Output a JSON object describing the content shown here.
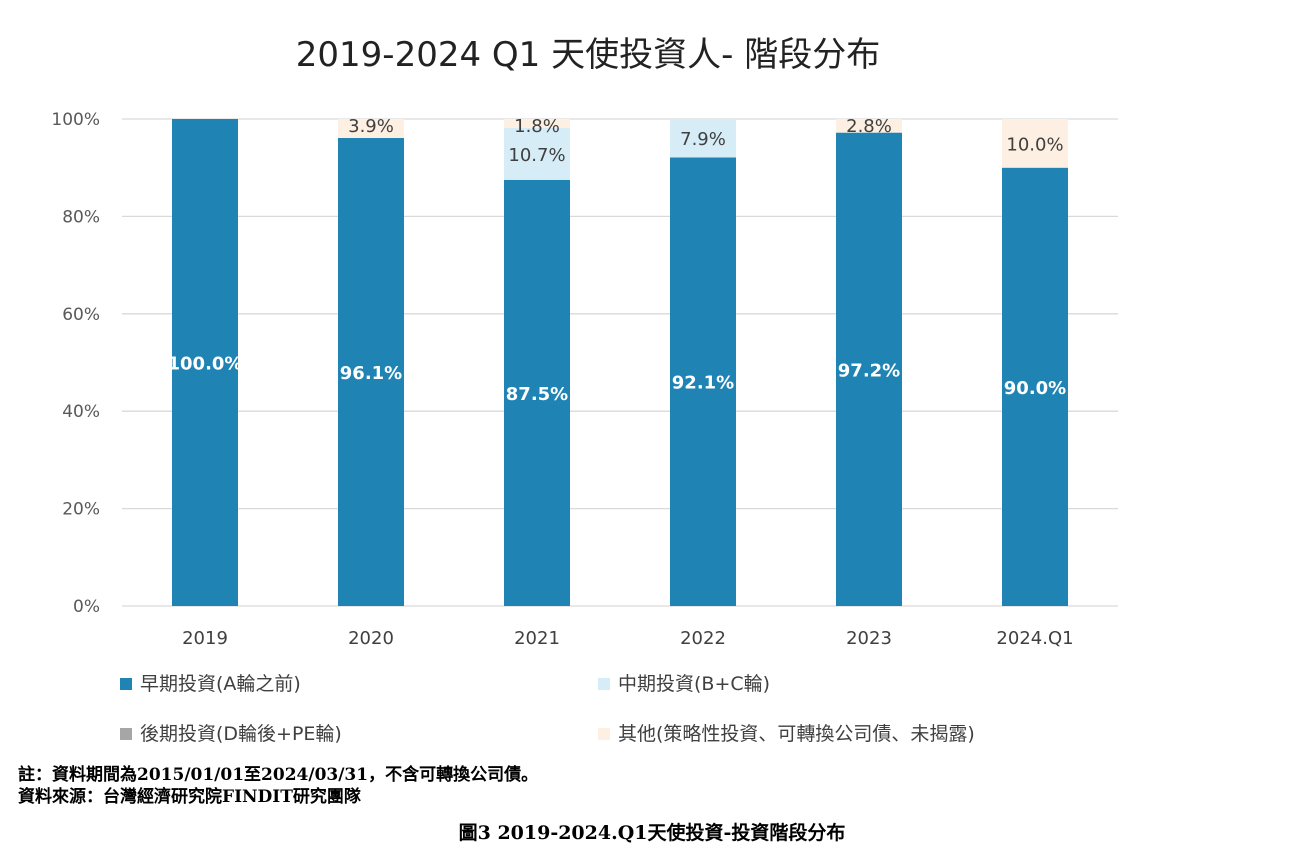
{
  "chart_data": {
    "type": "bar",
    "stacked": true,
    "title": "2019-2024 Q1 天使投資人- 階段分布",
    "categories": [
      "2019",
      "2020",
      "2021",
      "2022",
      "2023",
      "2024.Q1"
    ],
    "ylim": [
      0,
      100
    ],
    "yticks": [
      "0%",
      "20%",
      "40%",
      "60%",
      "80%",
      "100%"
    ],
    "grid": true,
    "legend_position": "bottom",
    "series": [
      {
        "name": "早期投資(A輪之前)",
        "color": "#1f83b4",
        "values": [
          100.0,
          96.1,
          87.5,
          92.1,
          97.2,
          90.0
        ],
        "labels": [
          "100.0%",
          "96.1%",
          "87.5%",
          "92.1%",
          "97.2%",
          "90.0%"
        ]
      },
      {
        "name": "中期投資(B+C輪)",
        "color": "#d6ecf7",
        "values": [
          0,
          0,
          10.7,
          7.9,
          0,
          0
        ],
        "labels": [
          "",
          "",
          "10.7%",
          "7.9%",
          "",
          ""
        ]
      },
      {
        "name": "後期投資(D輪後+PE輪)",
        "color": "#a6a6a6",
        "values": [
          0,
          0,
          0,
          0,
          0,
          0
        ],
        "labels": [
          "",
          "",
          "",
          "",
          "",
          ""
        ]
      },
      {
        "name": "其他(策略性投資、可轉換公司債、未揭露)",
        "color": "#fdf0e2",
        "values": [
          0,
          3.9,
          1.8,
          0,
          2.8,
          10.0
        ],
        "labels": [
          "",
          "3.9%",
          "1.8%",
          "",
          "2.8%",
          "10.0%"
        ]
      }
    ]
  },
  "footer": {
    "note": "註：資料期間為2015/01/01至2024/03/31，不含可轉換公司債。",
    "source": "資料來源：台灣經濟研究院FINDIT研究團隊",
    "caption": "圖3  2019-2024.Q1天使投資-投資階段分布"
  }
}
